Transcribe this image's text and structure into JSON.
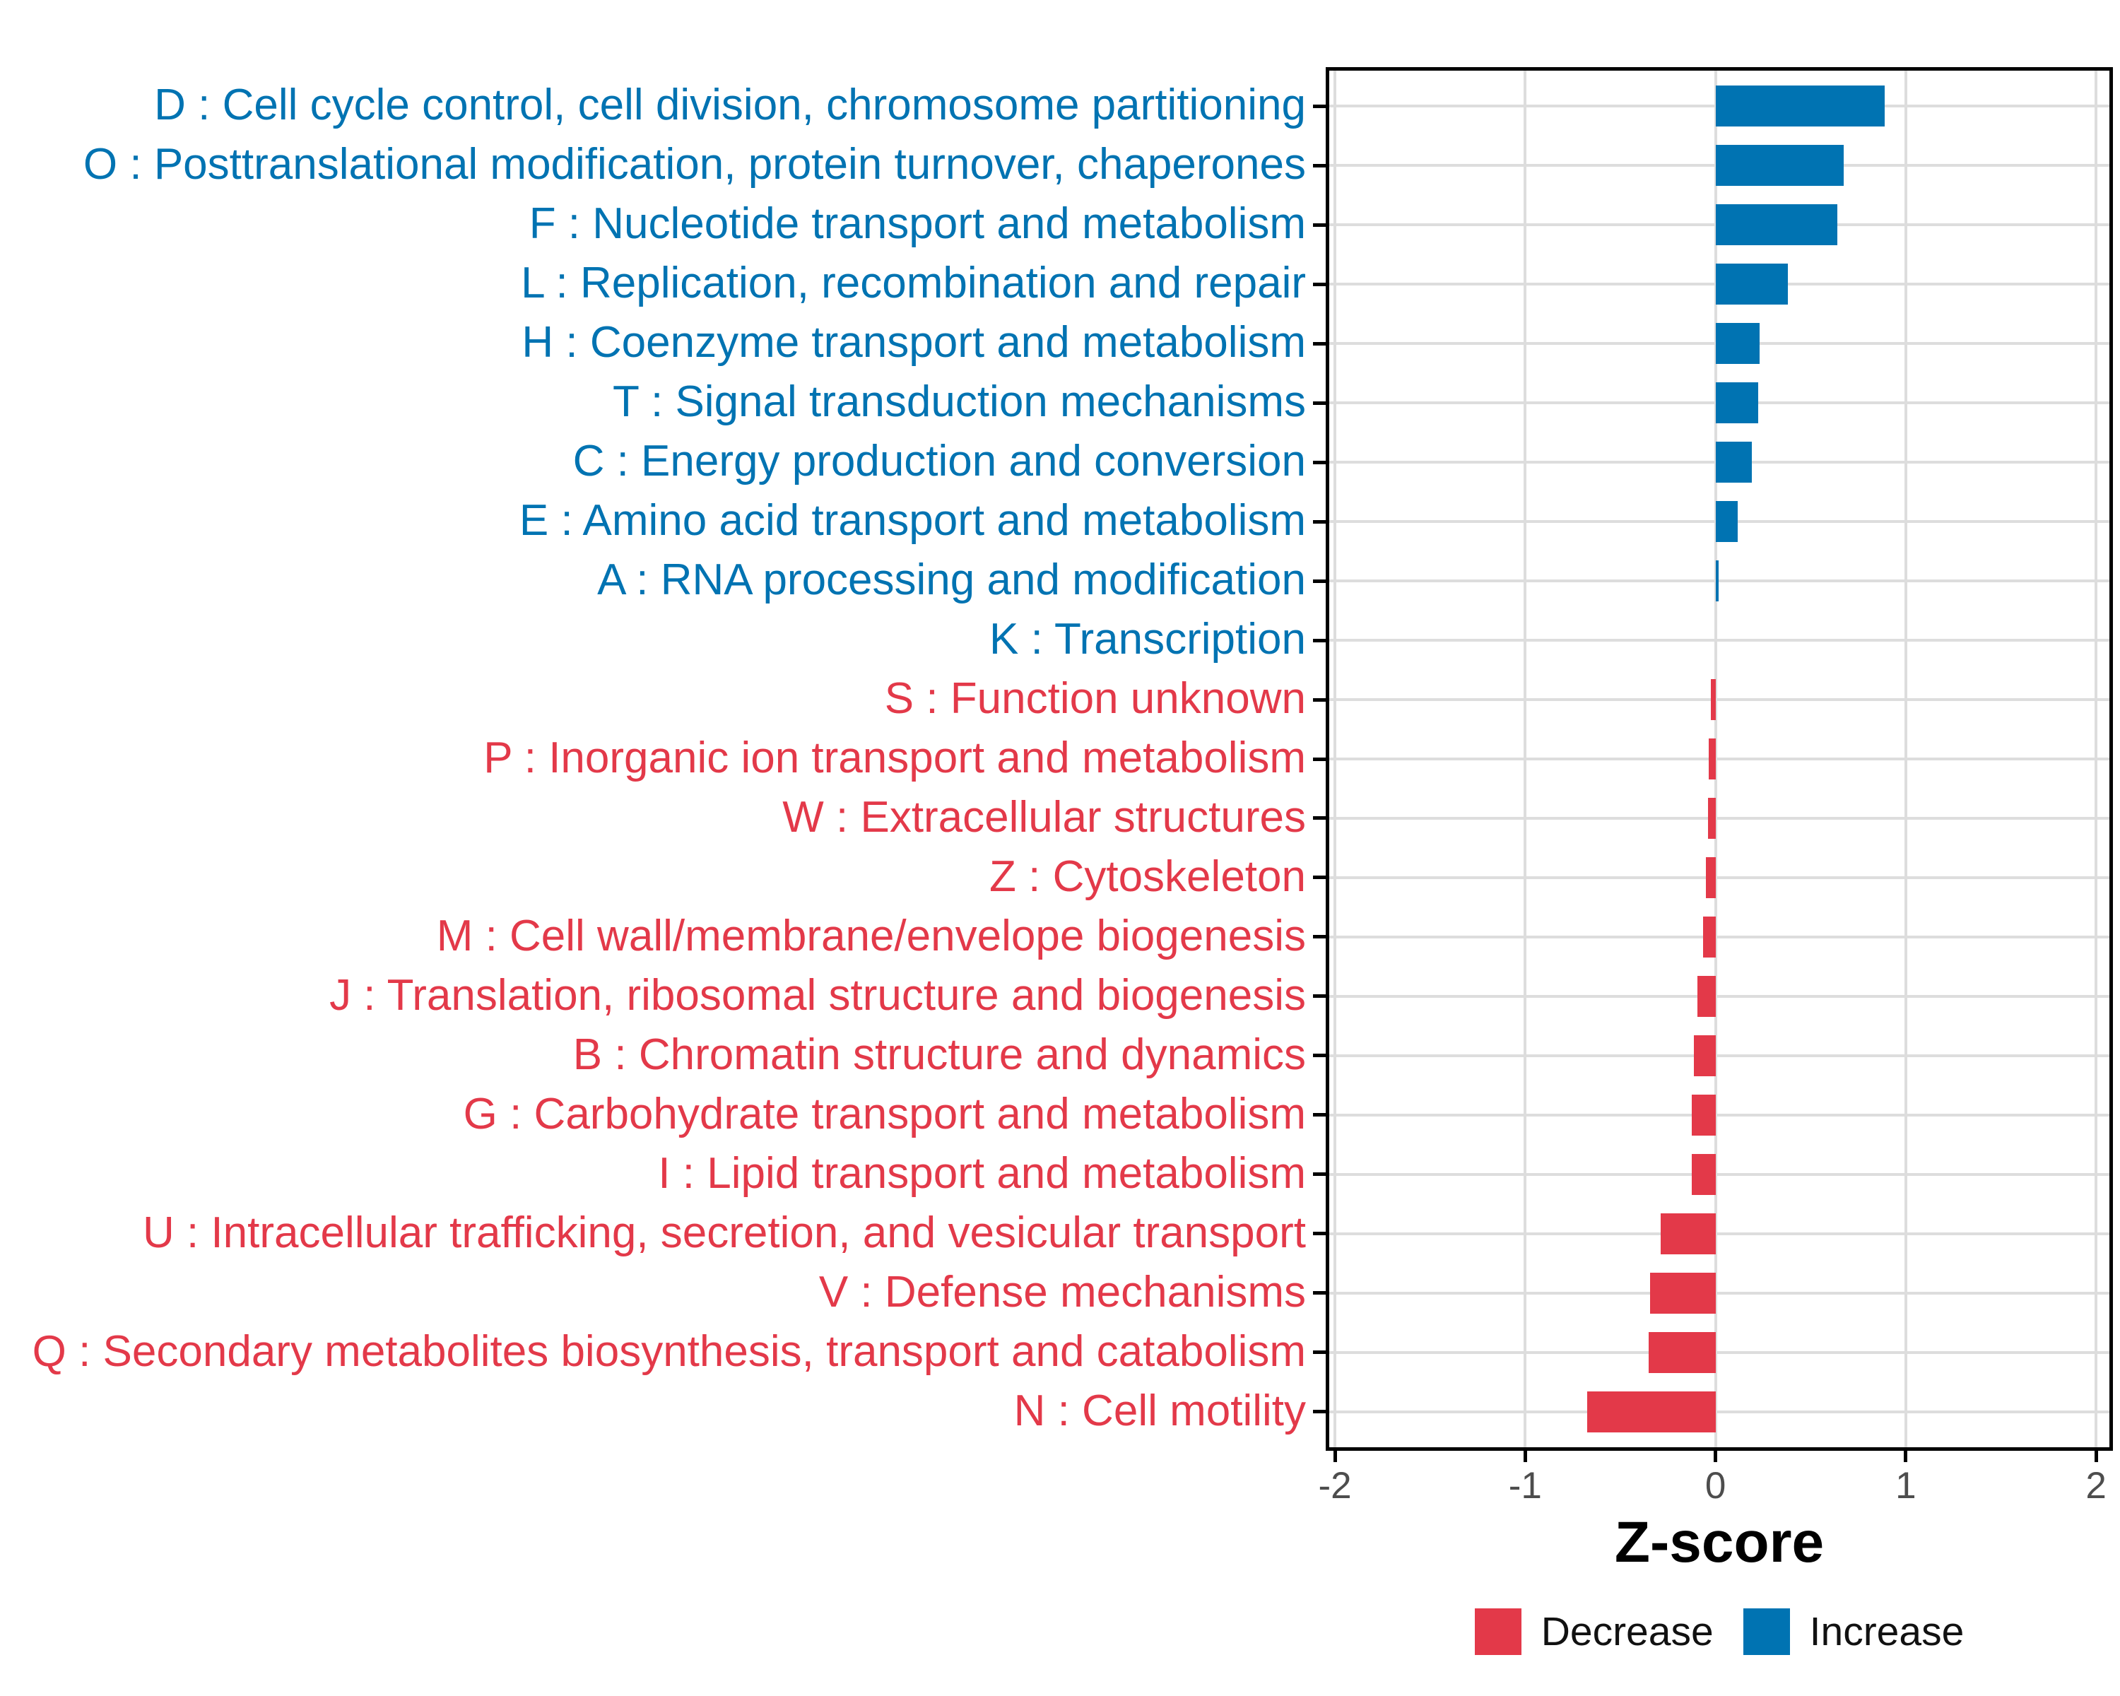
{
  "chart_data": {
    "type": "bar",
    "orientation": "horizontal",
    "title": "",
    "xlabel": "Z-score",
    "ylabel": "",
    "xlim": [
      -2.03,
      2.07
    ],
    "x_ticks": [
      -2,
      -1,
      0,
      1,
      2
    ],
    "grid": true,
    "legend_position": "bottom",
    "categories": [
      "D : Cell cycle control, cell division, chromosome partitioning",
      "O : Posttranslational modification, protein turnover, chaperones",
      "F : Nucleotide transport and metabolism",
      "L : Replication, recombination and repair",
      "H : Coenzyme transport and metabolism",
      "T : Signal transduction mechanisms",
      "C : Energy production and conversion",
      "E : Amino acid transport and metabolism",
      "A : RNA processing and modification",
      "K : Transcription",
      "S : Function unknown",
      "P : Inorganic ion transport and metabolism",
      "W : Extracellular structures",
      "Z : Cytoskeleton",
      "M : Cell wall/membrane/envelope biogenesis",
      "J : Translation, ribosomal structure and biogenesis",
      "B : Chromatin structure and dynamics",
      "G : Carbohydrate transport and metabolism",
      "I : Lipid transport and metabolism",
      "U : Intracellular trafficking, secretion, and vesicular transport",
      "V : Defense mechanisms",
      "Q : Secondary metabolites biosynthesis, transport and catabolism",
      "N : Cell motility"
    ],
    "values": [
      0.89,
      0.675,
      0.64,
      0.38,
      0.23,
      0.225,
      0.19,
      0.115,
      0.015,
      0.0,
      -0.025,
      -0.035,
      -0.04,
      -0.05,
      -0.065,
      -0.095,
      -0.115,
      -0.125,
      -0.125,
      -0.29,
      -0.345,
      -0.35,
      -0.675
    ],
    "directions": [
      "increase",
      "increase",
      "increase",
      "increase",
      "increase",
      "increase",
      "increase",
      "increase",
      "increase",
      "increase",
      "decrease",
      "decrease",
      "decrease",
      "decrease",
      "decrease",
      "decrease",
      "decrease",
      "decrease",
      "decrease",
      "decrease",
      "decrease",
      "decrease",
      "decrease"
    ],
    "colors": {
      "increase": "#0073B2",
      "decrease": "#E33949"
    },
    "axis_text_color": "#4d4d4d",
    "gridline_color": "#dddddd",
    "legend": [
      {
        "label": "Decrease",
        "color": "#E33949"
      },
      {
        "label": "Increase",
        "color": "#0073B2"
      }
    ]
  }
}
